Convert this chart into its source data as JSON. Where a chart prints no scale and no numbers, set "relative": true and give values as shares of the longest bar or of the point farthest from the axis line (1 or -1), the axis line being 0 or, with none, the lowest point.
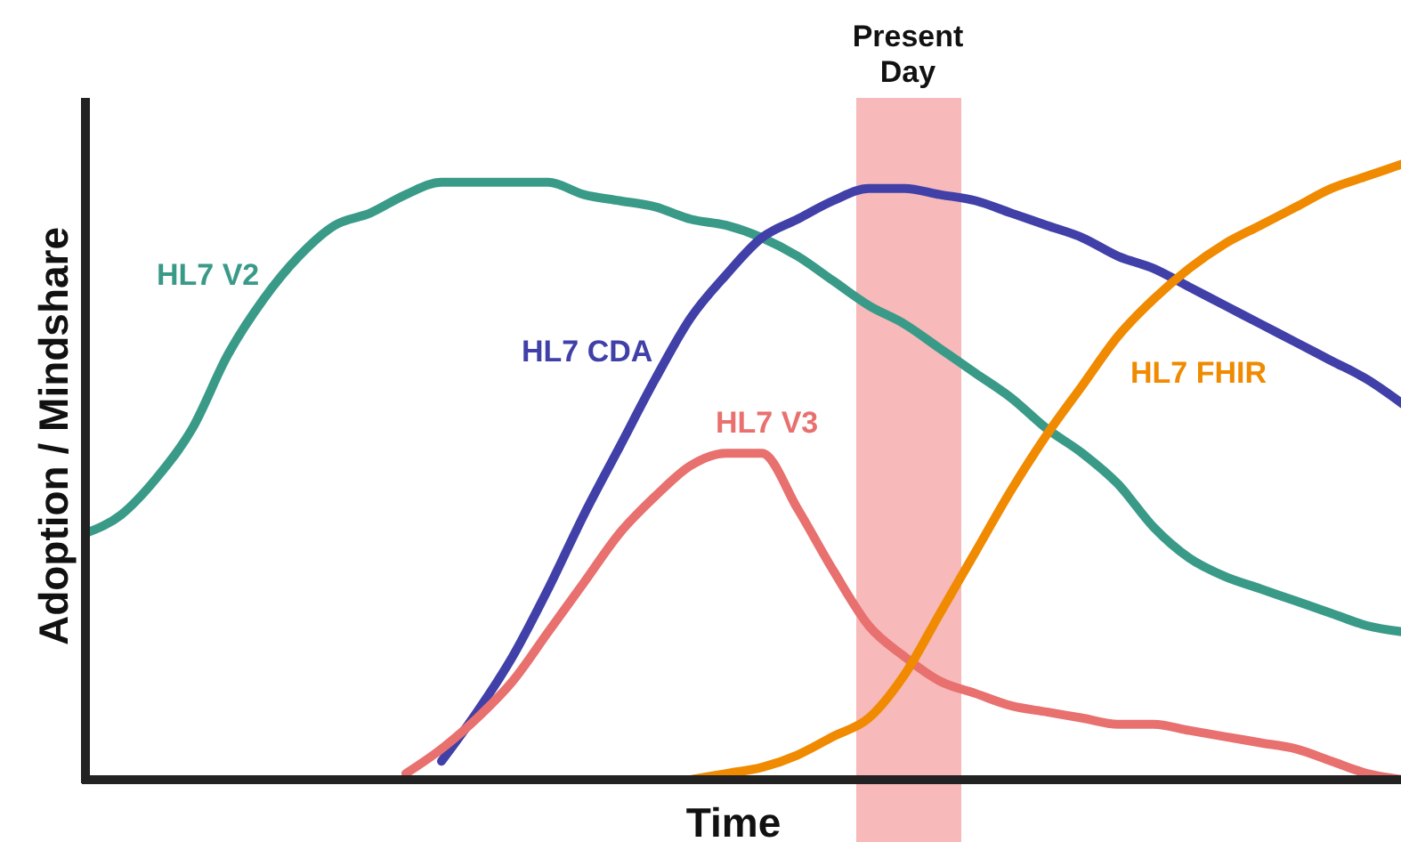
{
  "chart_data": {
    "type": "line",
    "relative": true,
    "xlabel": "Time",
    "ylabel": "Adoption / Mindshare",
    "annotations": [
      "Present Day"
    ],
    "marker": "none",
    "line_style": "solid",
    "categories": [
      null,
      null,
      null,
      null,
      null,
      null,
      null,
      null,
      null,
      null,
      null,
      null,
      null,
      null,
      null,
      null,
      null,
      null,
      null,
      null,
      null,
      null,
      null,
      null,
      null,
      null,
      null,
      null,
      null,
      null,
      null,
      null,
      null,
      null,
      null,
      null,
      null,
      null
    ],
    "series": [
      {
        "name": "HL7 V2",
        "color": "#3a9a88",
        "values": [
          0.4,
          0.43,
          0.49,
          0.57,
          0.69,
          0.78,
          0.85,
          0.9,
          0.92,
          0.95,
          0.97,
          0.97,
          0.97,
          0.97,
          0.95,
          0.94,
          0.93,
          0.91,
          0.9,
          0.88,
          0.85,
          0.81,
          0.77,
          0.74,
          0.7,
          0.66,
          0.62,
          0.57,
          0.53,
          0.48,
          0.41,
          0.36,
          0.33,
          0.31,
          0.29,
          0.27,
          0.25,
          0.24
        ]
      },
      {
        "name": "HL7 CDA",
        "color": "#4040a8",
        "values": [
          null,
          null,
          null,
          null,
          null,
          null,
          null,
          null,
          null,
          null,
          0.03,
          0.11,
          0.2,
          0.31,
          0.43,
          0.54,
          0.65,
          0.75,
          0.82,
          0.88,
          0.91,
          0.94,
          0.96,
          0.96,
          0.95,
          0.94,
          0.92,
          0.9,
          0.88,
          0.85,
          0.83,
          0.8,
          0.77,
          0.74,
          0.71,
          0.68,
          0.65,
          0.61
        ]
      },
      {
        "name": "HL7 V3",
        "color": "#e8706e",
        "values": [
          null,
          null,
          null,
          null,
          null,
          null,
          null,
          null,
          null,
          0.01,
          0.05,
          0.1,
          0.16,
          0.24,
          0.32,
          0.4,
          0.46,
          0.51,
          0.53,
          0.53,
          0.44,
          0.34,
          0.25,
          0.2,
          0.16,
          0.14,
          0.12,
          0.11,
          0.1,
          0.09,
          0.09,
          0.08,
          0.07,
          0.06,
          0.05,
          0.03,
          0.01,
          0
        ]
      },
      {
        "name": "HL7 FHIR",
        "color": "#f08a00",
        "values": [
          null,
          null,
          null,
          null,
          null,
          null,
          null,
          null,
          null,
          null,
          null,
          null,
          null,
          null,
          null,
          null,
          null,
          0,
          0.01,
          0.02,
          0.04,
          0.07,
          0.1,
          0.17,
          0.27,
          0.37,
          0.47,
          0.56,
          0.64,
          0.72,
          0.78,
          0.83,
          0.87,
          0.9,
          0.93,
          0.96,
          0.98,
          1
        ]
      }
    ]
  }
}
